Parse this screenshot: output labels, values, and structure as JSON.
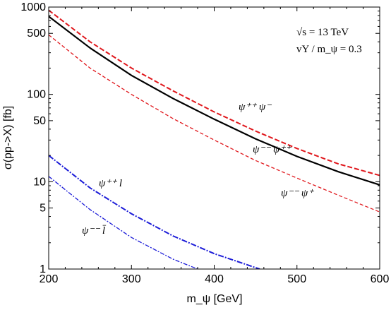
{
  "chart_data": {
    "type": "line",
    "title": "",
    "xlabel": "m_ψ [GeV]",
    "ylabel": "σ(pp->X) [fb]",
    "xlim": [
      200,
      600
    ],
    "ylim": [
      1,
      1000
    ],
    "yscale": "log",
    "x_ticks": [
      200,
      300,
      400,
      500,
      600
    ],
    "y_ticks": [
      1,
      5,
      10,
      50,
      100,
      500,
      1000
    ],
    "grid": false,
    "legend": "none",
    "info_lines": [
      "√s = 13 TeV",
      "vY / m_ψ = 0.3"
    ],
    "series": [
      {
        "label": "ψ⁺⁺ ψ⁻",
        "color": "#e0161b",
        "style": "dashed-thick",
        "x": [
          200,
          250,
          300,
          350,
          400,
          450,
          500,
          550,
          600
        ],
        "y": [
          920,
          400,
          200,
          110,
          63,
          38,
          24,
          16,
          11.8
        ]
      },
      {
        "label": "ψ⁻⁻ ψ⁺⁺",
        "color": "#000000",
        "style": "solid",
        "x": [
          200,
          250,
          300,
          350,
          400,
          450,
          500,
          550,
          600
        ],
        "y": [
          780,
          340,
          165,
          90,
          52,
          31,
          19.5,
          13,
          9.2
        ]
      },
      {
        "label": "ψ⁻⁻ ψ⁺",
        "color": "#e0161b",
        "style": "dashed-thin",
        "x": [
          200,
          250,
          300,
          350,
          400,
          450,
          500,
          550,
          600
        ],
        "y": [
          480,
          200,
          100,
          53,
          30,
          17.5,
          11,
          7,
          4.5
        ]
      },
      {
        "label": "ψ⁺⁺ l",
        "color": "#1c1cd8",
        "style": "dashdot-thick",
        "x": [
          200,
          250,
          300,
          350,
          400,
          455
        ],
        "y": [
          20,
          8.5,
          4.3,
          2.4,
          1.5,
          1.0
        ]
      },
      {
        "label": "ψ⁻⁻ l̄",
        "color": "#1c1cd8",
        "style": "dashdot-thin",
        "x": [
          200,
          250,
          300,
          350,
          380
        ],
        "y": [
          11.5,
          4.8,
          2.3,
          1.3,
          1.0
        ]
      }
    ]
  }
}
